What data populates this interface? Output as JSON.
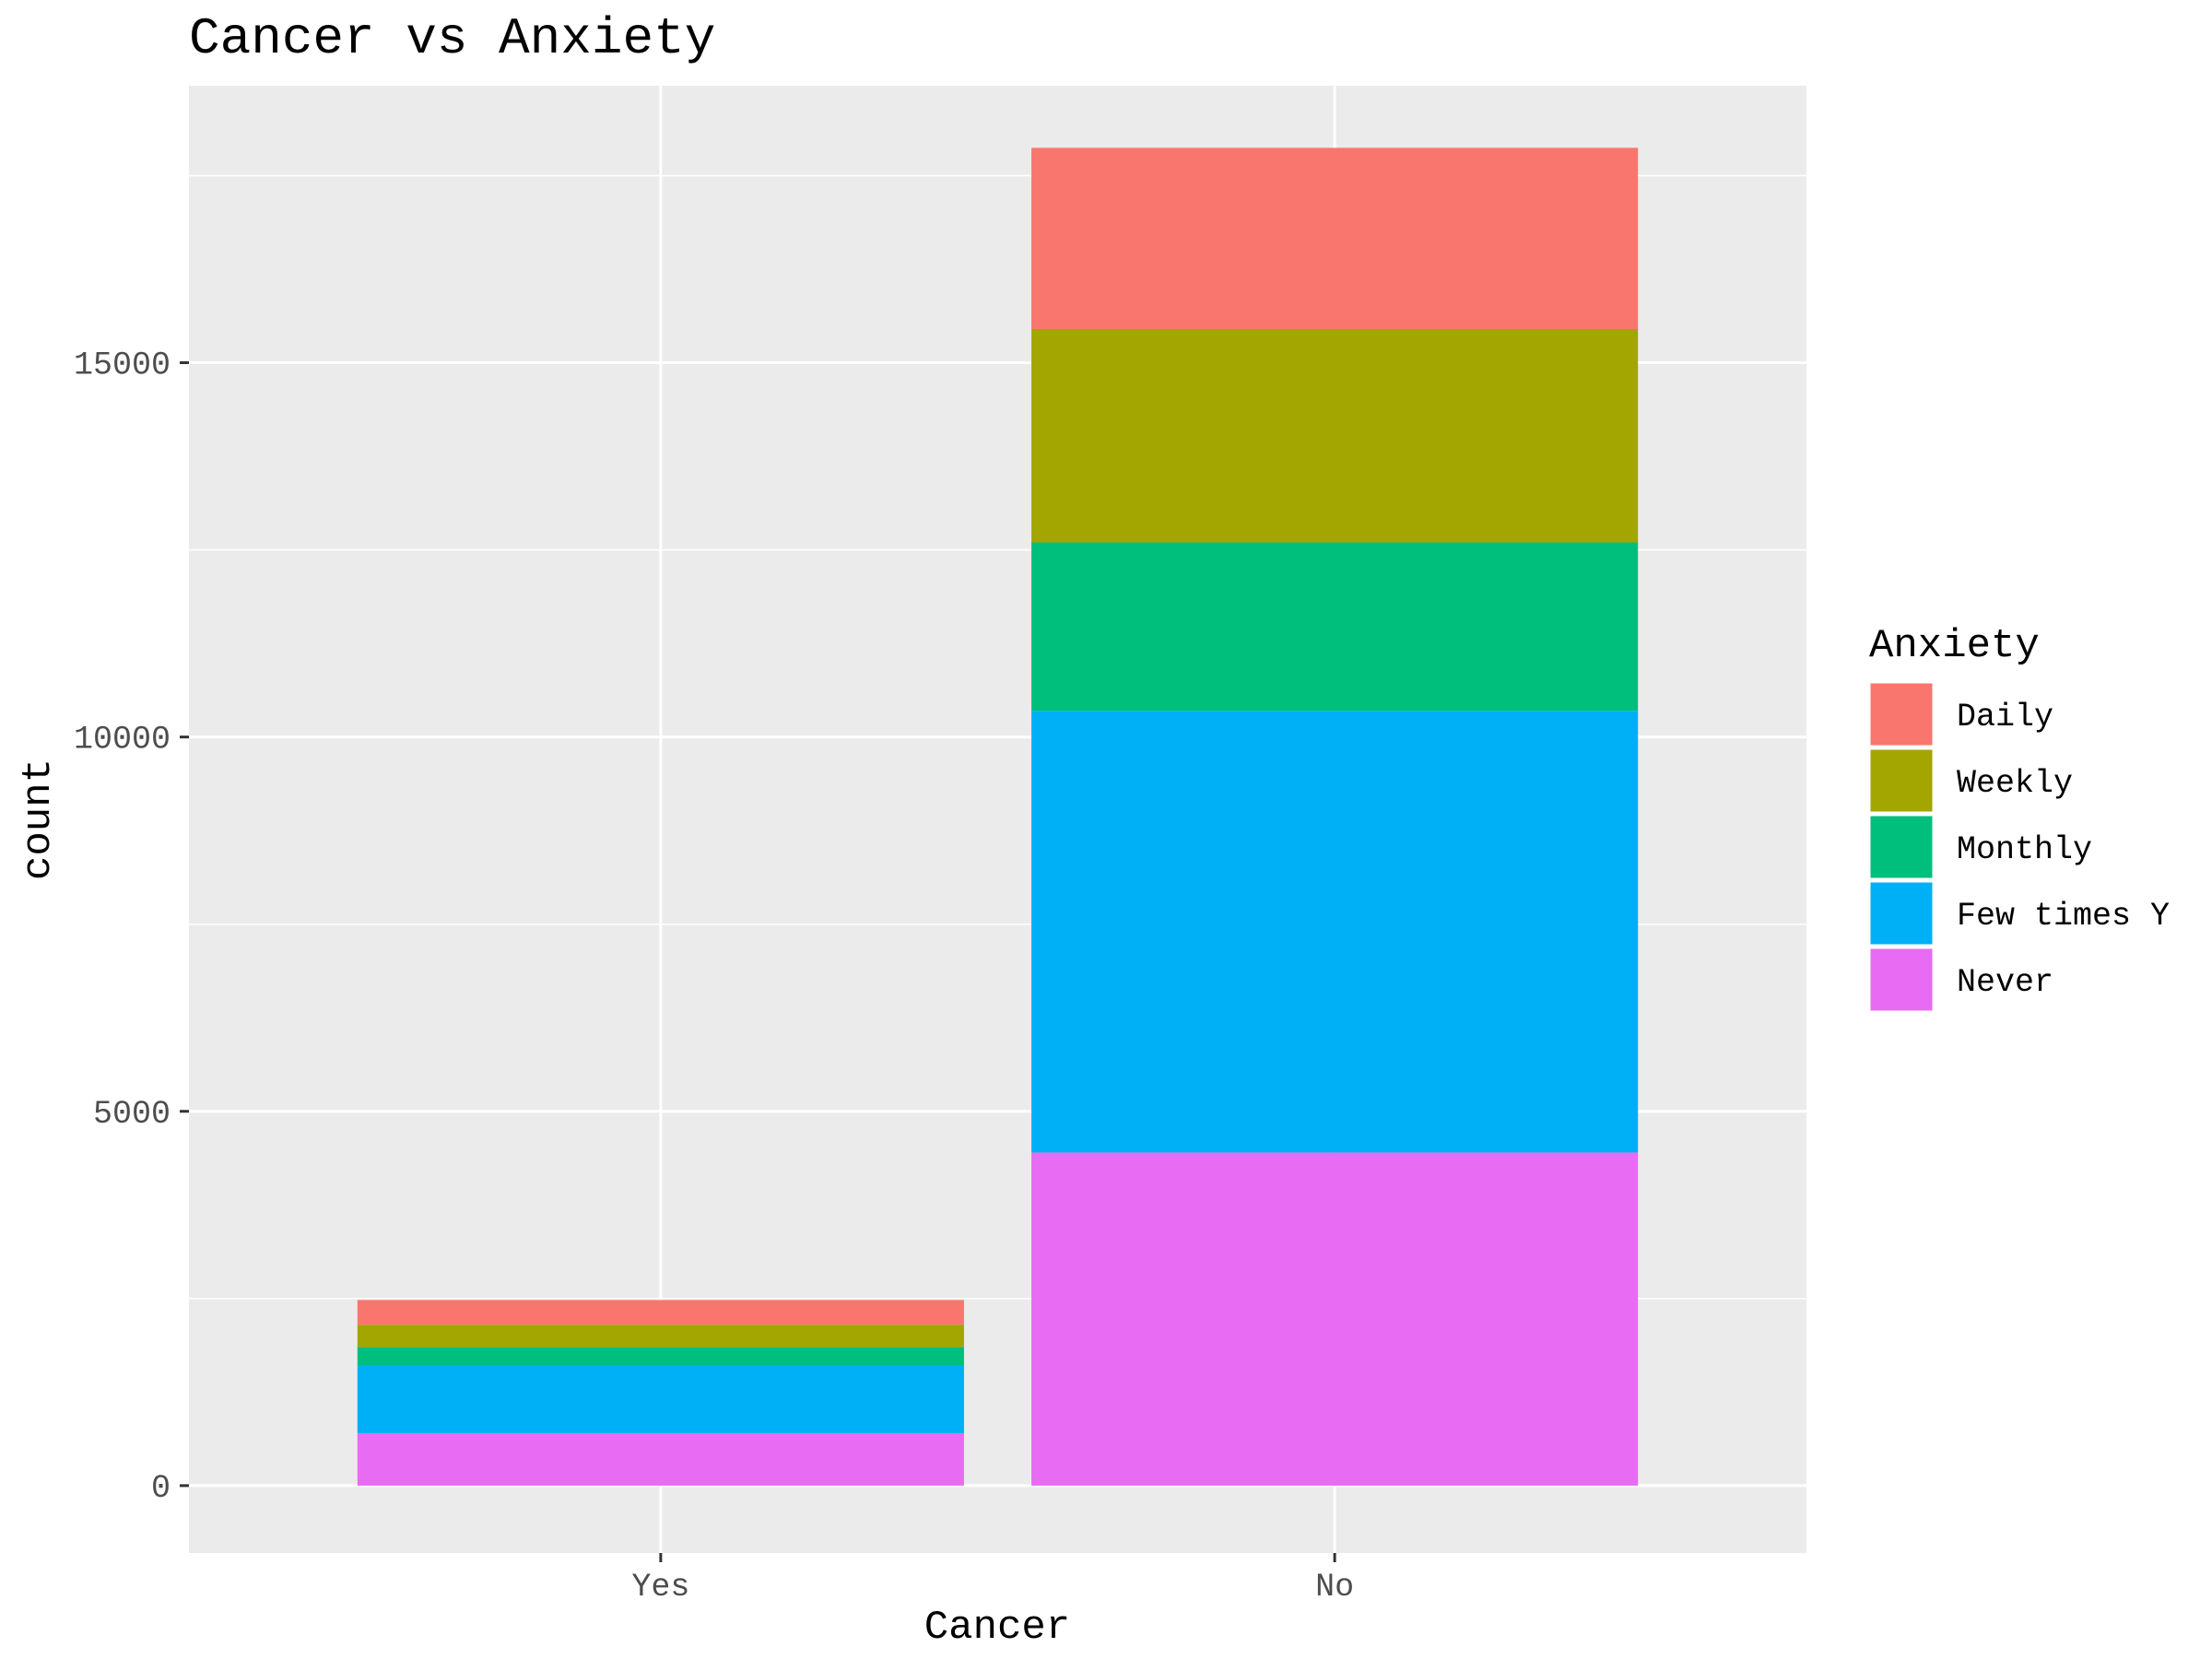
{
  "chart_data": {
    "type": "bar",
    "stacked": true,
    "title": "Cancer vs Anxiety",
    "xlabel": "Cancer",
    "ylabel": "count",
    "categories": [
      "Yes",
      "No"
    ],
    "ylim": [
      -900,
      18700
    ],
    "yticks": [
      0,
      5000,
      10000,
      15000
    ],
    "grid": true,
    "legend": {
      "title": "Anxiety",
      "placement": "right"
    },
    "series": [
      {
        "name": "Never",
        "color": "#E76BF3",
        "values": [
          700,
          4450
        ]
      },
      {
        "name": "Few times Y",
        "color": "#00B0F6",
        "values": [
          900,
          5900
        ]
      },
      {
        "name": "Monthly",
        "color": "#00BF7D",
        "values": [
          250,
          2250
        ]
      },
      {
        "name": "Weekly",
        "color": "#A3A500",
        "values": [
          300,
          2850
        ]
      },
      {
        "name": "Daily",
        "color": "#F8766D",
        "values": [
          330,
          2420
        ]
      }
    ],
    "legend_order": [
      "Daily",
      "Weekly",
      "Monthly",
      "Few times Y",
      "Never"
    ]
  }
}
